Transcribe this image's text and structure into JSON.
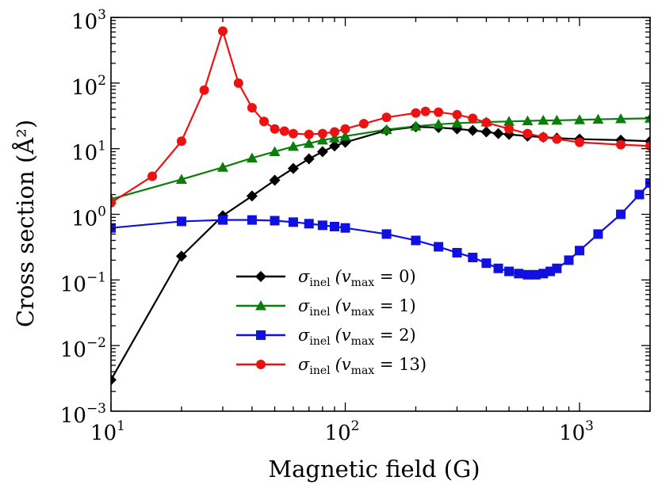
{
  "chart_data": {
    "type": "line",
    "xscale": "log",
    "yscale": "log",
    "xlim": [
      10,
      2000
    ],
    "ylim": [
      0.001,
      1000
    ],
    "xlabel": "Magnetic field (G)",
    "ylabel": "Cross section (Å²)",
    "xticks": [
      {
        "base": "10",
        "exp": "1",
        "value": 10
      },
      {
        "base": "10",
        "exp": "2",
        "value": 100
      },
      {
        "base": "10",
        "exp": "3",
        "value": 1000
      }
    ],
    "yticks": [
      {
        "base": "10",
        "exp": "−3",
        "value": 0.001
      },
      {
        "base": "10",
        "exp": "−2",
        "value": 0.01
      },
      {
        "base": "10",
        "exp": "−1",
        "value": 0.1
      },
      {
        "base": "10",
        "exp": "0",
        "value": 1
      },
      {
        "base": "10",
        "exp": "1",
        "value": 10
      },
      {
        "base": "10",
        "exp": "2",
        "value": 100
      },
      {
        "base": "10",
        "exp": "3",
        "value": 1000
      }
    ],
    "legend_position": "lower-center",
    "series": [
      {
        "name": "σinel (vmax = 0)",
        "sym": "σ",
        "sub": "inel",
        "cond": "(v",
        "condsub": "max",
        "condval": " = 0)",
        "color": "#000000",
        "marker": "diamond",
        "x": [
          10,
          20,
          30,
          40,
          50,
          60,
          70,
          80,
          90,
          100,
          150,
          200,
          250,
          300,
          350,
          400,
          450,
          500,
          600,
          700,
          800,
          1000,
          1500,
          2000
        ],
        "y": [
          0.003,
          0.23,
          0.95,
          1.9,
          3.3,
          5.0,
          7.0,
          9.0,
          11.0,
          12.5,
          19.0,
          21.5,
          21.0,
          20.0,
          19.0,
          18.0,
          17.0,
          16.5,
          15.5,
          15.0,
          14.5,
          14.0,
          13.5,
          13.0
        ]
      },
      {
        "name": "σinel (vmax = 1)",
        "sym": "σ",
        "sub": "inel",
        "cond": "(v",
        "condsub": "max",
        "condval": " = 1)",
        "color": "#0a7d0a",
        "marker": "triangle",
        "x": [
          10,
          20,
          30,
          40,
          50,
          60,
          70,
          80,
          90,
          100,
          150,
          200,
          250,
          300,
          400,
          500,
          600,
          700,
          800,
          1000,
          1200,
          1500,
          2000
        ],
        "y": [
          1.7,
          3.4,
          5.2,
          7.2,
          9.0,
          10.8,
          12.0,
          13.5,
          14.5,
          15.5,
          19.5,
          22.0,
          23.5,
          24.5,
          25.5,
          26.0,
          26.5,
          27.0,
          27.0,
          27.5,
          28.0,
          28.5,
          29.0
        ]
      },
      {
        "name": "σinel (vmax = 2)",
        "sym": "σ",
        "sub": "inel",
        "cond": "(v",
        "condsub": "max",
        "condval": " = 2)",
        "color": "#1010e0",
        "marker": "square",
        "x": [
          10,
          20,
          30,
          40,
          50,
          60,
          70,
          80,
          90,
          100,
          150,
          200,
          250,
          300,
          350,
          400,
          450,
          500,
          550,
          600,
          650,
          700,
          750,
          800,
          900,
          1000,
          1200,
          1500,
          1800,
          2000
        ],
        "y": [
          0.62,
          0.78,
          0.82,
          0.82,
          0.8,
          0.76,
          0.72,
          0.68,
          0.65,
          0.62,
          0.5,
          0.4,
          0.32,
          0.26,
          0.22,
          0.18,
          0.15,
          0.135,
          0.125,
          0.12,
          0.12,
          0.125,
          0.135,
          0.15,
          0.2,
          0.28,
          0.5,
          1.0,
          2.0,
          3.0
        ]
      },
      {
        "name": "σinel (vmax = 13)",
        "sym": "σ",
        "sub": "inel",
        "cond": "(v",
        "condsub": "max",
        "condval": " = 13)",
        "color": "#ee1111",
        "marker": "circle",
        "x": [
          10,
          15,
          20,
          25,
          30,
          35,
          40,
          45,
          50,
          55,
          60,
          70,
          80,
          90,
          100,
          120,
          150,
          200,
          220,
          250,
          300,
          350,
          400,
          500,
          600,
          700,
          800,
          1000,
          1500,
          2000
        ],
        "y": [
          1.5,
          3.8,
          13.0,
          78.0,
          620.0,
          100.0,
          42.0,
          26.0,
          20.0,
          18.5,
          17.0,
          16.5,
          17.0,
          18.0,
          20.0,
          24.0,
          30.0,
          35.0,
          37.0,
          36.0,
          33.0,
          29.0,
          25.0,
          20.0,
          17.0,
          15.0,
          14.0,
          12.5,
          11.5,
          11.0
        ]
      }
    ]
  }
}
